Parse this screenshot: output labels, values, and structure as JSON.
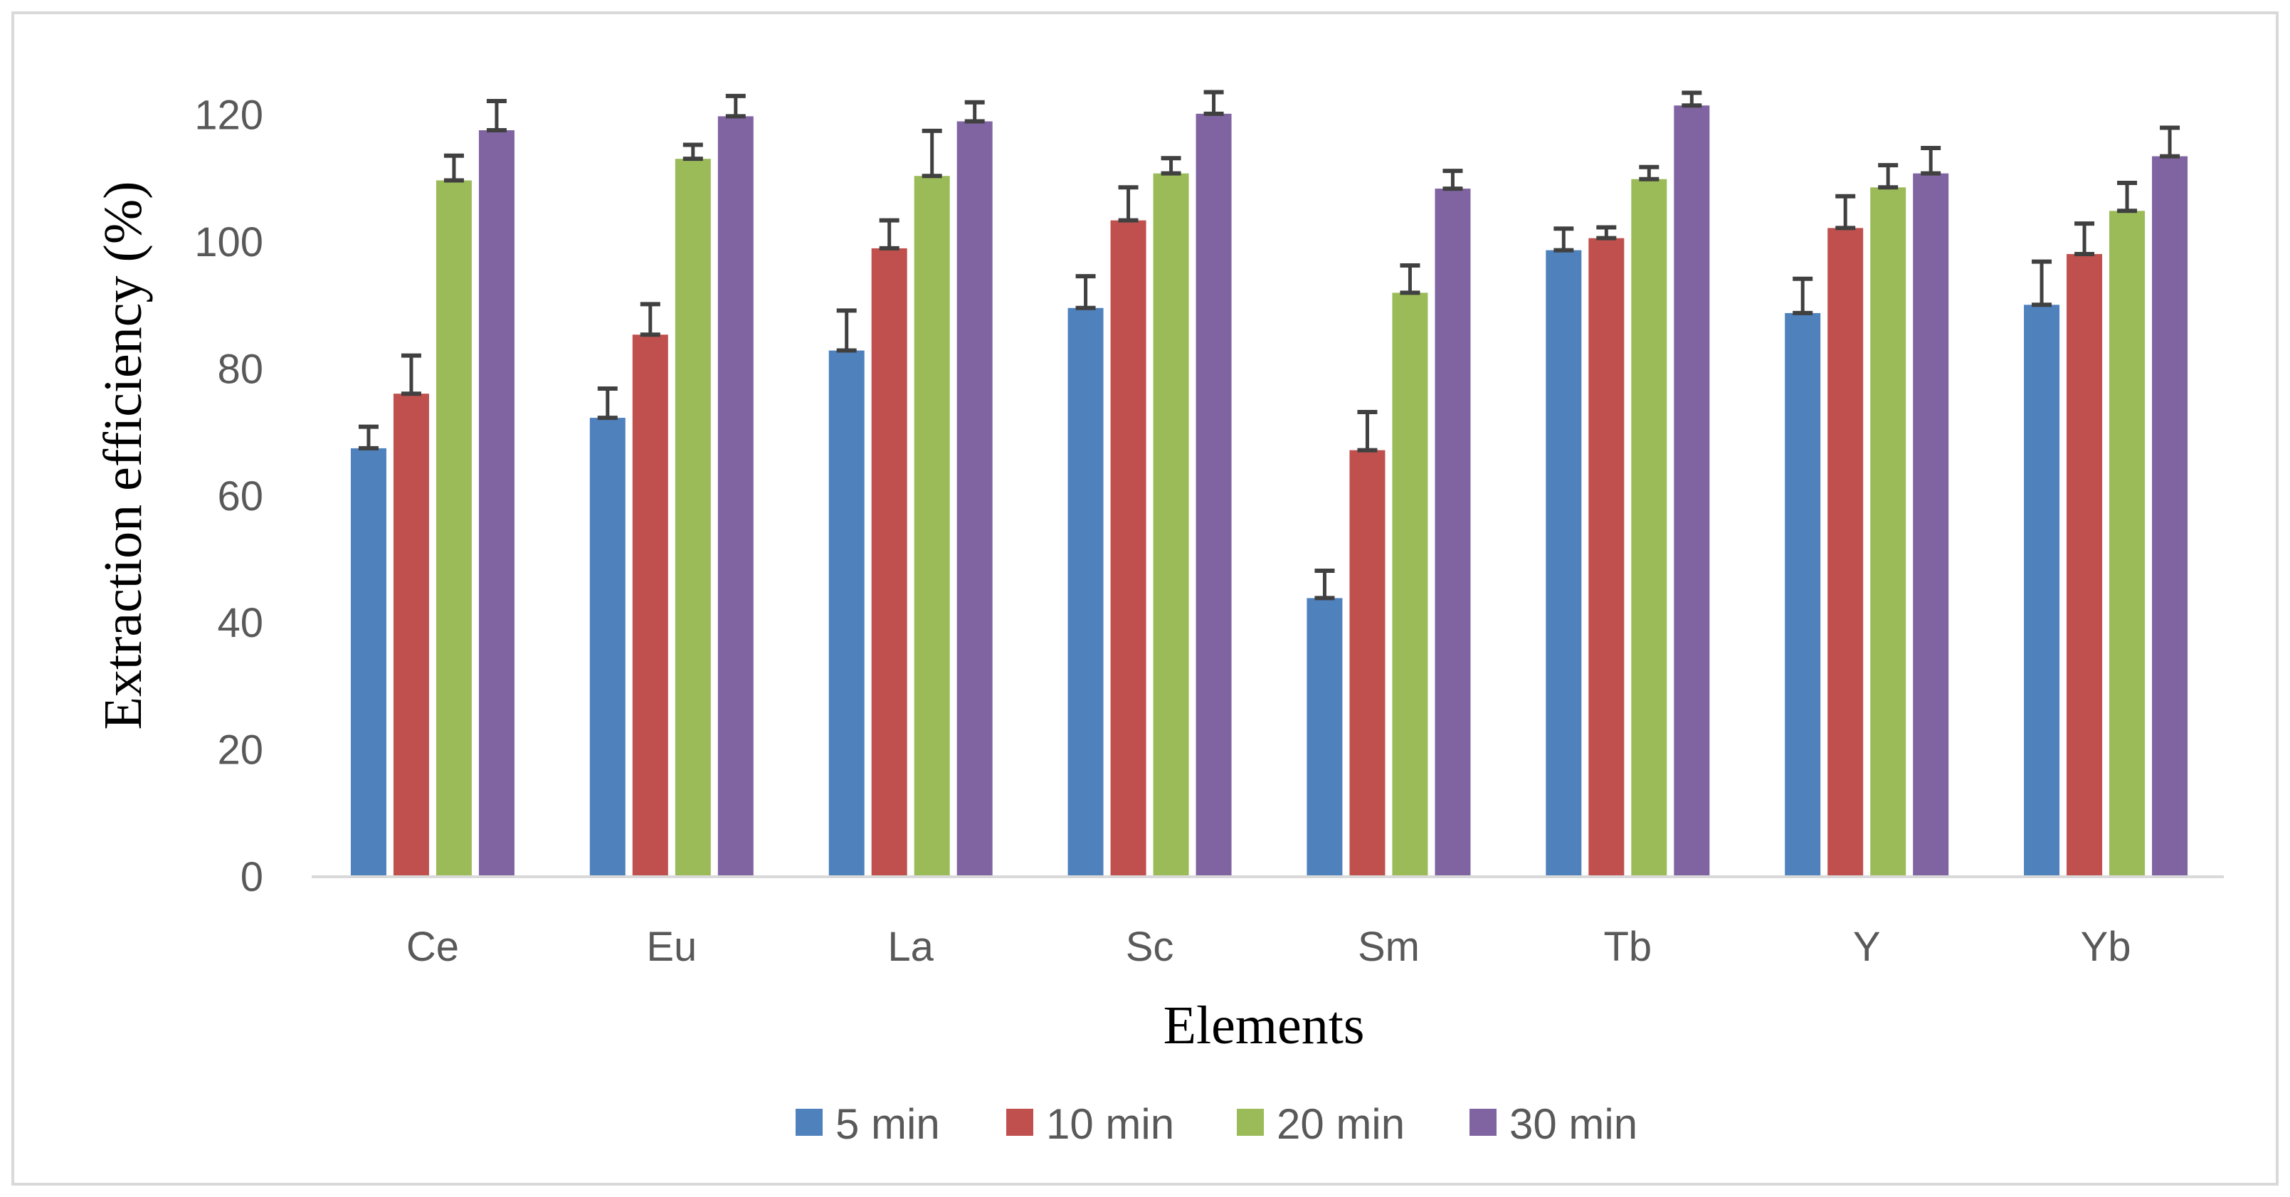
{
  "chart_data": {
    "type": "bar",
    "title": "",
    "xlabel": "Elements",
    "ylabel": "Extraction efficiency (%)",
    "ylim": [
      0,
      130
    ],
    "yticks": [
      0,
      20,
      40,
      60,
      80,
      100,
      120
    ],
    "categories": [
      "Ce",
      "Eu",
      "La",
      "Sc",
      "Sm",
      "Tb",
      "Y",
      "Yb"
    ],
    "series": [
      {
        "name": "5 min",
        "color": "#4F81BD",
        "values": [
          67.5,
          72.3,
          82.9,
          89.6,
          43.9,
          98.7,
          88.8,
          90.1
        ],
        "errors": [
          3.4,
          4.6,
          6.3,
          5.0,
          4.3,
          3.4,
          5.4,
          6.8
        ]
      },
      {
        "name": "10 min",
        "color": "#C0504D",
        "values": [
          76.1,
          85.4,
          99.0,
          103.4,
          67.2,
          100.6,
          102.2,
          98.1
        ],
        "errors": [
          6.0,
          4.8,
          4.4,
          5.2,
          6.0,
          1.7,
          5.0,
          4.8
        ]
      },
      {
        "name": "20 min",
        "color": "#9BBB59",
        "values": [
          109.7,
          113.1,
          110.4,
          110.8,
          92.0,
          109.9,
          108.6,
          104.9
        ],
        "errors": [
          3.9,
          2.2,
          7.1,
          2.4,
          4.3,
          1.9,
          3.5,
          4.4
        ]
      },
      {
        "name": "30 min",
        "color": "#8064A2",
        "values": [
          117.6,
          119.8,
          119.0,
          120.2,
          108.4,
          121.5,
          110.8,
          113.5
        ],
        "errors": [
          4.6,
          3.2,
          3.0,
          3.4,
          2.8,
          2.0,
          4.0,
          4.5
        ]
      }
    ],
    "grid": false,
    "legend_position": "bottom"
  },
  "colors": {
    "axis": "#D9D9D9",
    "error_bar": "#404040",
    "frame": "#D9D9D9"
  }
}
